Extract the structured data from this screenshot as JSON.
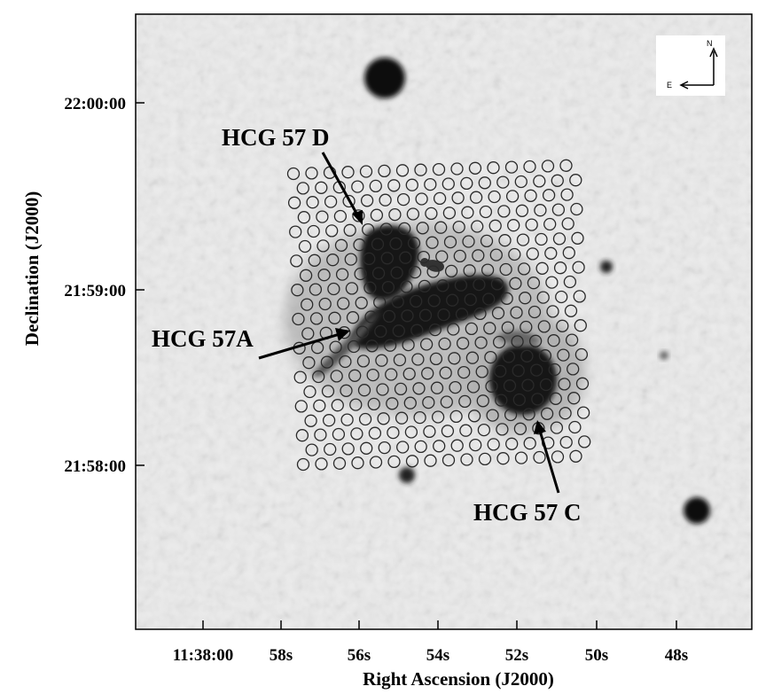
{
  "figure": {
    "x_axis_title": "Right Ascension (J2000)",
    "y_axis_title": "Declination (J2000)",
    "x_tick_labels": [
      "11:38:00",
      "58s",
      "56s",
      "54s",
      "52s",
      "50s",
      "48s"
    ],
    "y_tick_labels": [
      "22:00:00",
      "21:59:00",
      "21:58:00"
    ],
    "galaxy_labels": [
      "HCG 57 D",
      "HCG 57A",
      "HCG 57 C"
    ],
    "compass": {
      "north": "N",
      "east": "E"
    },
    "colors": {
      "background": "#ececec",
      "galaxy": "#121212",
      "fiber": "#2a2a2a"
    }
  }
}
